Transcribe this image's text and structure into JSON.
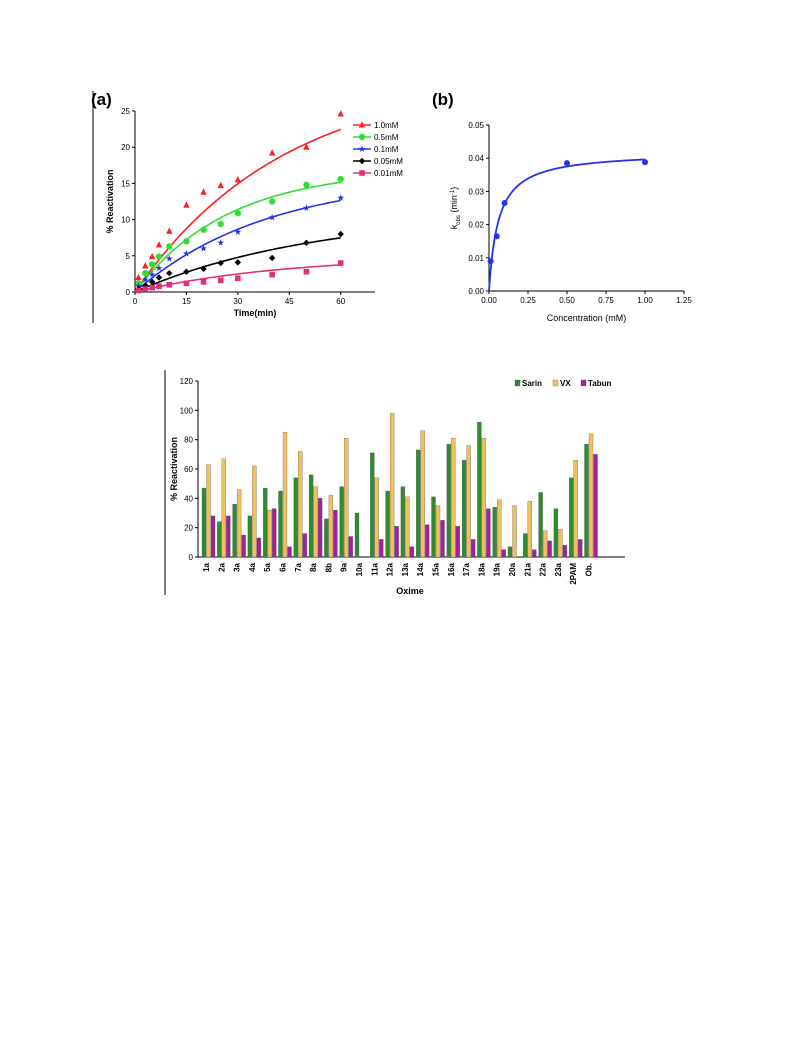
{
  "chart_data": [
    {
      "type": "scatter",
      "panel": "(a)",
      "xlabel": "Time(min)",
      "ylabel": "% Reactivation",
      "xlim": [
        0,
        70
      ],
      "ylim": [
        0,
        25
      ],
      "xticks": [
        "0",
        "15",
        "30",
        "45",
        "60"
      ],
      "yticks": [
        "0",
        "5",
        "10",
        "15",
        "20",
        "25"
      ],
      "legend": "top-right",
      "grid": false,
      "series": [
        {
          "name": "1.0mM",
          "color": "#ff2020",
          "marker": "triangle",
          "x": [
            1,
            3,
            5,
            7,
            10,
            15,
            20,
            25,
            30,
            40,
            50,
            60
          ],
          "y": [
            2.0,
            3.6,
            4.9,
            6.5,
            8.4,
            12.0,
            13.8,
            14.7,
            15.5,
            19.2,
            20.0,
            24.6
          ],
          "fit": {
            "a": 30,
            "k": 0.023
          }
        },
        {
          "name": "0.5mM",
          "color": "#33dd33",
          "marker": "circle",
          "x": [
            1,
            3,
            5,
            7,
            10,
            15,
            20,
            25,
            30,
            40,
            50,
            60
          ],
          "y": [
            1.2,
            2.6,
            3.8,
            4.9,
            6.3,
            7.0,
            8.6,
            9.4,
            10.9,
            12.5,
            14.8,
            15.6
          ],
          "fit": {
            "a": 17,
            "k": 0.037
          }
        },
        {
          "name": "0.1mM",
          "color": "#2233ee",
          "marker": "star",
          "x": [
            1,
            3,
            5,
            7,
            10,
            15,
            20,
            25,
            30,
            40,
            50,
            60
          ],
          "y": [
            0.8,
            1.7,
            2.4,
            3.3,
            4.6,
            5.3,
            6.0,
            6.8,
            8.3,
            10.3,
            11.6,
            13.0
          ],
          "fit": {
            "a": 16,
            "k": 0.026
          }
        },
        {
          "name": "0.05mM",
          "color": "#000000",
          "marker": "diamond",
          "x": [
            1,
            3,
            5,
            7,
            10,
            15,
            20,
            25,
            30,
            40,
            50,
            60
          ],
          "y": [
            0.4,
            0.9,
            1.4,
            2.0,
            2.6,
            2.8,
            3.2,
            4.0,
            4.1,
            4.7,
            6.8,
            8.0
          ],
          "fit": {
            "a": 11,
            "k": 0.019
          }
        },
        {
          "name": "0.01mM",
          "color": "#e0307a",
          "marker": "square",
          "x": [
            1,
            3,
            5,
            7,
            10,
            15,
            20,
            25,
            30,
            40,
            50,
            60
          ],
          "y": [
            0.2,
            0.4,
            0.6,
            0.8,
            1.0,
            1.2,
            1.4,
            1.6,
            1.9,
            2.4,
            2.8,
            4.0
          ],
          "fit": {
            "a": 5,
            "k": 0.023
          }
        }
      ]
    },
    {
      "type": "scatter",
      "panel": "(b)",
      "xlabel": "Concentration (mM)",
      "ylabel": "kobs (min-1)",
      "ylabel_main": "k",
      "ylabel_sub": "obs",
      "ylabel_unit": " (min",
      "ylabel_sup": "-1",
      "ylabel_close": ")",
      "xlim": [
        0,
        1.25
      ],
      "ylim": [
        0,
        0.05
      ],
      "xticks": [
        "0.00",
        "0.25",
        "0.50",
        "0.75",
        "1.00",
        "1.25"
      ],
      "yticks": [
        "0.00",
        "0.01",
        "0.02",
        "0.03",
        "0.04",
        "0.05"
      ],
      "grid": false,
      "series": [
        {
          "color": "#2233ee",
          "x": [
            0.01,
            0.05,
            0.1,
            0.5,
            1.0
          ],
          "y": [
            0.009,
            0.0165,
            0.0265,
            0.0385,
            0.0388
          ],
          "fit": {
            "vmax": 0.042,
            "km": 0.06
          }
        }
      ]
    },
    {
      "type": "bar",
      "xlabel": "Oxime",
      "ylabel": "% Reactivation",
      "ylim": [
        0,
        120
      ],
      "yticks": [
        "0",
        "20",
        "40",
        "60",
        "80",
        "100",
        "120"
      ],
      "legend": "top-right",
      "grid": false,
      "categories": [
        "1a",
        "2a",
        "3a",
        "4a",
        "5a",
        "6a",
        "7a",
        "8a",
        "8b",
        "9a",
        "10a",
        "11a",
        "12a",
        "13a",
        "14a",
        "15a",
        "16a",
        "17a",
        "18a",
        "19a",
        "20a",
        "21a",
        "22a",
        "23a",
        "2PAM",
        "Ob."
      ],
      "series": [
        {
          "name": "Sarin",
          "color": "#2e8b2e",
          "values": [
            47,
            24,
            36,
            28,
            47,
            45,
            54,
            56,
            26,
            48,
            30,
            71,
            45,
            48,
            73,
            41,
            77,
            66,
            92,
            34,
            7,
            16,
            44,
            33,
            54,
            77
          ]
        },
        {
          "name": "VX",
          "color": "#f0c060",
          "values": [
            63,
            67,
            46,
            62,
            32,
            85,
            72,
            48,
            42,
            81,
            0,
            54,
            98,
            41,
            86,
            35,
            81,
            76,
            81,
            39,
            35,
            38,
            18,
            19,
            66,
            84
          ]
        },
        {
          "name": "Tabun",
          "color": "#a020a0",
          "values": [
            28,
            28,
            15,
            13,
            33,
            7,
            16,
            40,
            32,
            14,
            0,
            12,
            21,
            7,
            22,
            25,
            21,
            12,
            33,
            5,
            0,
            5,
            11,
            8,
            12,
            70
          ]
        }
      ]
    }
  ]
}
